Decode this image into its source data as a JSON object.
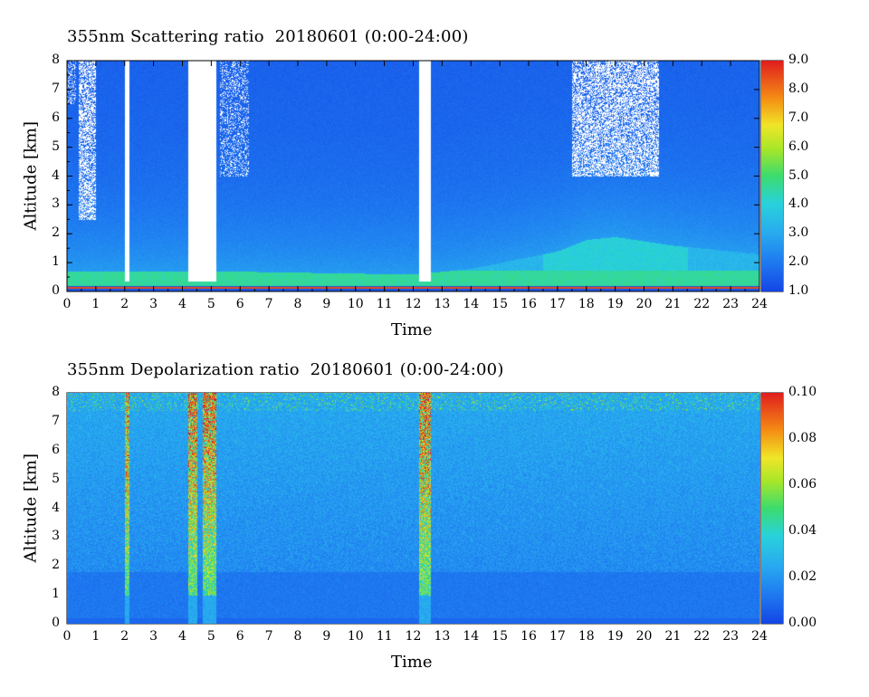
{
  "chart_data": [
    {
      "type": "heatmap",
      "title": "355nm Scattering ratio  20180601 (0:00-24:00)",
      "xlabel": "Time",
      "ylabel": "Altitude [km]",
      "xlim": [
        0,
        24
      ],
      "ylim": [
        0,
        8
      ],
      "x_ticks": [
        "0",
        "1",
        "2",
        "3",
        "4",
        "5",
        "6",
        "7",
        "8",
        "9",
        "10",
        "11",
        "12",
        "13",
        "14",
        "15",
        "16",
        "17",
        "18",
        "19",
        "20",
        "21",
        "22",
        "23",
        "24"
      ],
      "y_ticks": [
        "0",
        "1",
        "2",
        "3",
        "4",
        "5",
        "6",
        "7",
        "8"
      ],
      "colorbar": {
        "range": [
          1.0,
          9.0
        ],
        "tick_labels": [
          "1.0",
          "2.0",
          "3.0",
          "4.0",
          "5.0",
          "6.0",
          "7.0",
          "8.0",
          "9.0"
        ]
      },
      "missing_data_intervals_hours": [
        [
          2.0,
          2.15
        ],
        [
          4.2,
          5.15
        ],
        [
          12.2,
          12.6
        ]
      ],
      "aerosol_layer_top_km": {
        "x": [
          0,
          6,
          12,
          14,
          17,
          18,
          19,
          21,
          23,
          24
        ],
        "y": [
          0.7,
          0.7,
          0.6,
          0.8,
          1.4,
          1.8,
          1.9,
          1.6,
          1.4,
          1.3
        ]
      },
      "cloud_regions": [
        {
          "x": [
            0.4,
            1.0
          ],
          "y": [
            2.5,
            8.0
          ]
        },
        {
          "x": [
            17.5,
            20.5
          ],
          "y": [
            4.0,
            8.0
          ]
        }
      ]
    },
    {
      "type": "heatmap",
      "title": "355nm Depolarization ratio  20180601 (0:00-24:00)",
      "xlabel": "Time",
      "ylabel": "Altitude [km]",
      "xlim": [
        0,
        24
      ],
      "ylim": [
        0,
        8
      ],
      "x_ticks": [
        "0",
        "1",
        "2",
        "3",
        "4",
        "5",
        "6",
        "7",
        "8",
        "9",
        "10",
        "11",
        "12",
        "13",
        "14",
        "15",
        "16",
        "17",
        "18",
        "19",
        "20",
        "21",
        "22",
        "23",
        "24"
      ],
      "y_ticks": [
        "0",
        "1",
        "2",
        "3",
        "4",
        "5",
        "6",
        "7",
        "8"
      ],
      "colorbar": {
        "range": [
          0.0,
          0.1
        ],
        "tick_labels": [
          "0.00",
          "0.02",
          "0.04",
          "0.06",
          "0.08",
          "0.10"
        ]
      },
      "high_depol_bands_hours": [
        [
          2.0,
          2.15
        ],
        [
          4.2,
          4.5
        ],
        [
          4.7,
          5.15
        ],
        [
          12.2,
          12.6
        ]
      ]
    }
  ]
}
